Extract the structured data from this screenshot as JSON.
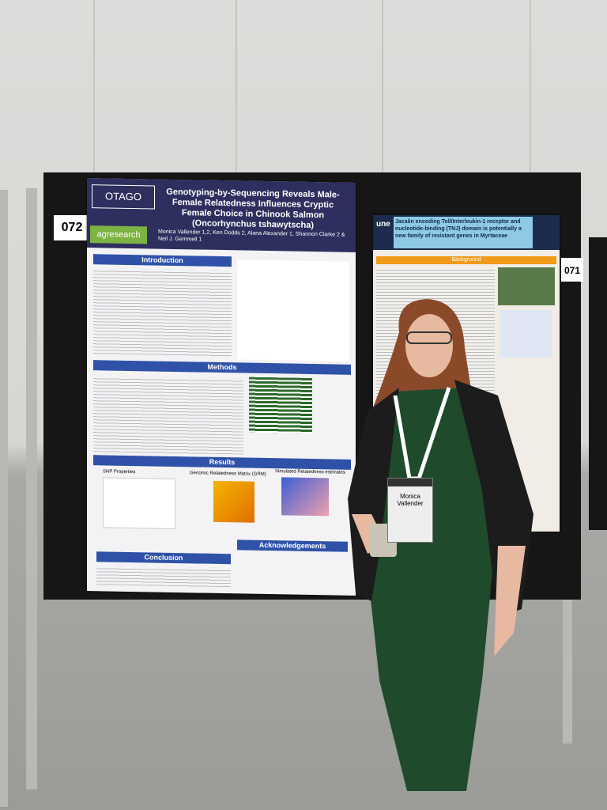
{
  "signs": {
    "left": "072",
    "right": "071"
  },
  "left_poster": {
    "logos": [
      "OTAGO",
      "agresearch"
    ],
    "title": "Genotyping-by-Sequencing Reveals Male-Female Relatedness Influences Cryptic Female Choice in Chinook Salmon (Oncorhynchus tshawytscha)",
    "authors": "Monica Vallender 1,2, Ken Dodds 2, Alana Alexander 1, Shannon Clarke 2 & Neil J. Gemmell 1",
    "sections": [
      "Introduction",
      "Methods",
      "Results",
      "Conclusion",
      "Acknowledgements"
    ],
    "figure_labels": [
      "SNP Properties",
      "Genomic Relatedness Matrix (GRM)",
      "Simulated Relatedness estimates"
    ]
  },
  "right_poster": {
    "logo": "une",
    "title": "Jacalin encoding Toll/Interleukin-1 receptor and nucleotide-binding (TNJ) domain is potentially a new family of resistant genes in Myrtaceae",
    "sections": [
      "Background"
    ]
  },
  "badge": {
    "name": "Monica Vallender"
  }
}
